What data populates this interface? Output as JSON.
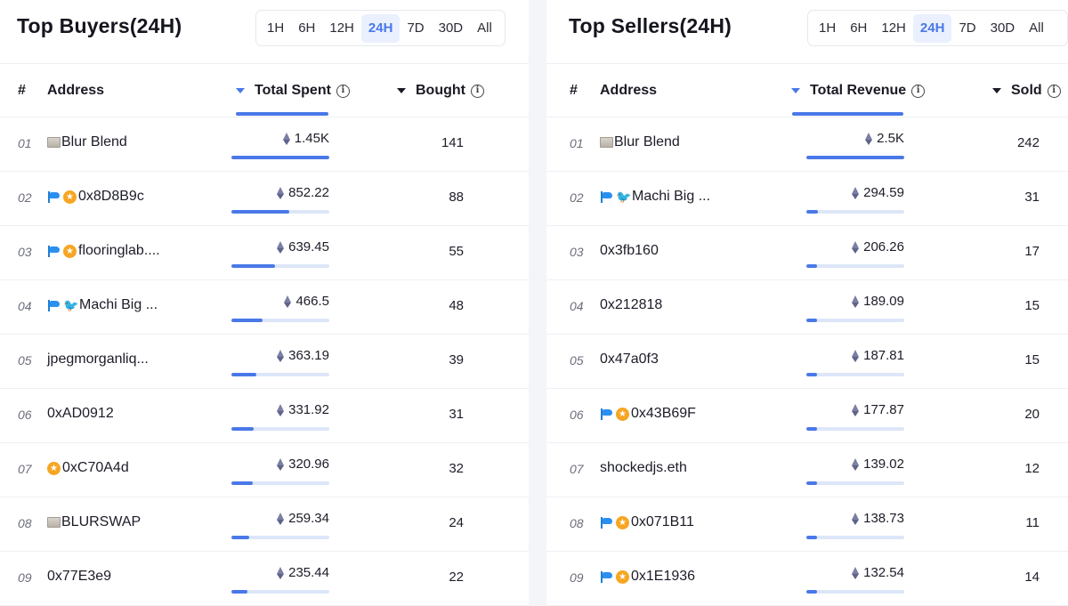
{
  "left": {
    "title": "Top Buyers(24H)",
    "timeframes": [
      "1H",
      "6H",
      "12H",
      "24H",
      "7D",
      "30D",
      "All"
    ],
    "active_timeframe": "24H",
    "columns": {
      "index": "#",
      "address": "Address",
      "metric": "Total Spent",
      "count": "Bought"
    },
    "rows": [
      {
        "index": "01",
        "icons": [
          "paper"
        ],
        "address": "Blur Blend",
        "value": "1.45K",
        "fraction": 1.0,
        "count": "141"
      },
      {
        "index": "02",
        "icons": [
          "flag",
          "badge"
        ],
        "address": "0x8D8B9c",
        "value": "852.22",
        "fraction": 0.587,
        "count": "88"
      },
      {
        "index": "03",
        "icons": [
          "flag",
          "badge"
        ],
        "address": "flooringlab....",
        "value": "639.45",
        "fraction": 0.441,
        "count": "55"
      },
      {
        "index": "04",
        "icons": [
          "flag",
          "bird"
        ],
        "address": "Machi Big ...",
        "value": "466.5",
        "fraction": 0.322,
        "count": "48"
      },
      {
        "index": "05",
        "icons": [],
        "address": "jpegmorganliq...",
        "value": "363.19",
        "fraction": 0.25,
        "count": "39"
      },
      {
        "index": "06",
        "icons": [],
        "address": "0xAD0912",
        "value": "331.92",
        "fraction": 0.229,
        "count": "31"
      },
      {
        "index": "07",
        "icons": [
          "badge"
        ],
        "address": "0xC70A4d",
        "value": "320.96",
        "fraction": 0.221,
        "count": "32"
      },
      {
        "index": "08",
        "icons": [
          "paper"
        ],
        "address": "BLURSWAP",
        "value": "259.34",
        "fraction": 0.179,
        "count": "24"
      },
      {
        "index": "09",
        "icons": [],
        "address": "0x77E3e9",
        "value": "235.44",
        "fraction": 0.162,
        "count": "22"
      }
    ]
  },
  "right": {
    "title": "Top Sellers(24H)",
    "timeframes": [
      "1H",
      "6H",
      "12H",
      "24H",
      "7D",
      "30D",
      "All"
    ],
    "active_timeframe": "24H",
    "columns": {
      "index": "#",
      "address": "Address",
      "metric": "Total Revenue",
      "count": "Sold"
    },
    "rows": [
      {
        "index": "01",
        "icons": [
          "paper"
        ],
        "address": "Blur Blend",
        "value": "2.5K",
        "fraction": 1.0,
        "count": "242"
      },
      {
        "index": "02",
        "icons": [
          "flag",
          "bird"
        ],
        "address": "Machi Big ...",
        "value": "294.59",
        "fraction": 0.118,
        "count": "31"
      },
      {
        "index": "03",
        "icons": [],
        "address": "0x3fb160",
        "value": "206.26",
        "fraction": 0.083,
        "count": "17"
      },
      {
        "index": "04",
        "icons": [],
        "address": "0x212818",
        "value": "189.09",
        "fraction": 0.076,
        "count": "15"
      },
      {
        "index": "05",
        "icons": [],
        "address": "0x47a0f3",
        "value": "187.81",
        "fraction": 0.075,
        "count": "15"
      },
      {
        "index": "06",
        "icons": [
          "flag",
          "badge"
        ],
        "address": "0x43B69F",
        "value": "177.87",
        "fraction": 0.071,
        "count": "20"
      },
      {
        "index": "07",
        "icons": [],
        "address": "shockedjs.eth",
        "value": "139.02",
        "fraction": 0.056,
        "count": "12"
      },
      {
        "index": "08",
        "icons": [
          "flag",
          "badge"
        ],
        "address": "0x071B11",
        "value": "138.73",
        "fraction": 0.055,
        "count": "11"
      },
      {
        "index": "09",
        "icons": [
          "flag",
          "badge"
        ],
        "address": "0x1E1936",
        "value": "132.54",
        "fraction": 0.053,
        "count": "14"
      }
    ]
  },
  "colors": {
    "accent": "#4a78e8",
    "bar_track": "#dde6f8",
    "active_tab_bg": "#eaf0fd"
  }
}
